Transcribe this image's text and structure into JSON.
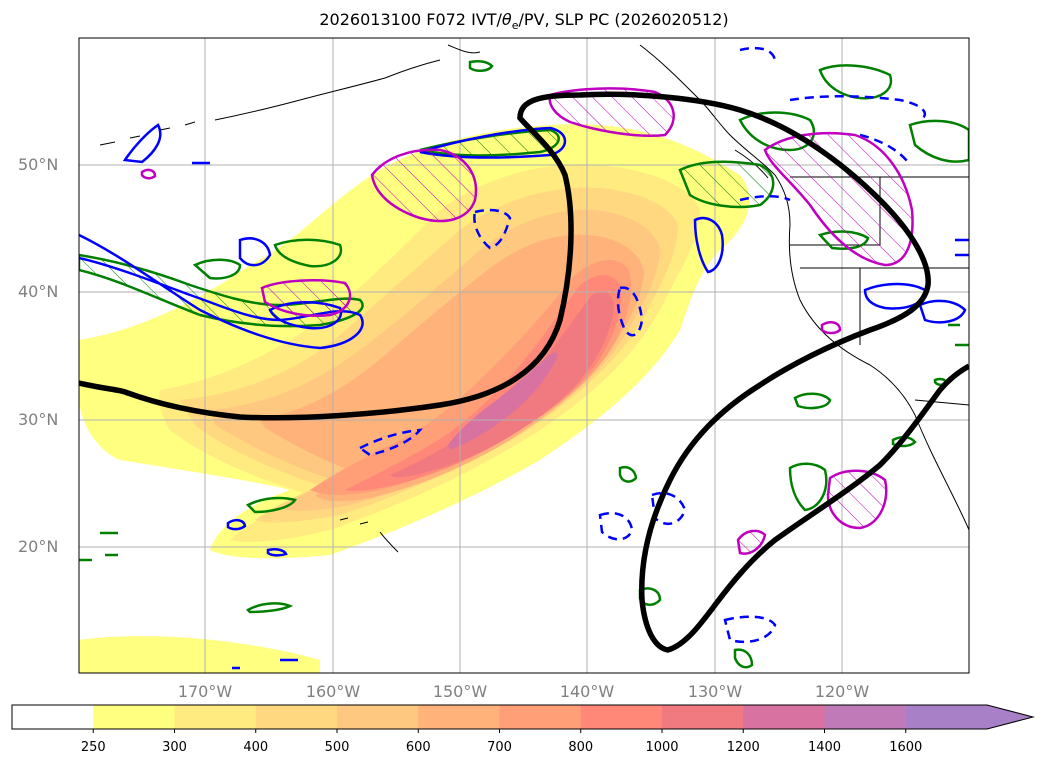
{
  "title": "2026013100 F072 IVT/θe/PV, SLP PC (2026020512)",
  "title_parts": {
    "prefix": "2026013100 F072 IVT/",
    "theta": "θ",
    "sub": "e",
    "suffix": "/PV, SLP PC (2026020512)"
  },
  "lat_labels": [
    "50°N",
    "40°N",
    "30°N",
    "20°N"
  ],
  "lon_labels": [
    "170°W",
    "160°W",
    "150°W",
    "140°W",
    "130°W",
    "120°W"
  ],
  "colorbar": {
    "levels": [
      "250",
      "300",
      "400",
      "500",
      "600",
      "700",
      "800",
      "1000",
      "1200",
      "1400",
      "1600"
    ],
    "colors": [
      "#ffffff",
      "#ffff80",
      "#ffeb80",
      "#ffd880",
      "#ffc880",
      "#ffb27a",
      "#ff9f78",
      "#ff8878",
      "#f07a80",
      "#d872a0",
      "#c07ab8",
      "#a880c8"
    ],
    "extend": "max"
  },
  "colors": {
    "ivt_fill": [
      "#ffff80",
      "#ffeb80",
      "#ffd880",
      "#ffc880",
      "#ffb27a",
      "#ff9f78",
      "#ff8878",
      "#f07a80",
      "#d872a0"
    ],
    "theta_e_contour": "#0000ff",
    "pv_contour": "#008000",
    "slp_pc_contour": "#000000",
    "hatch_contour": "#c000c0",
    "coastline": "#000000",
    "grid": "#b0b0b0"
  }
}
